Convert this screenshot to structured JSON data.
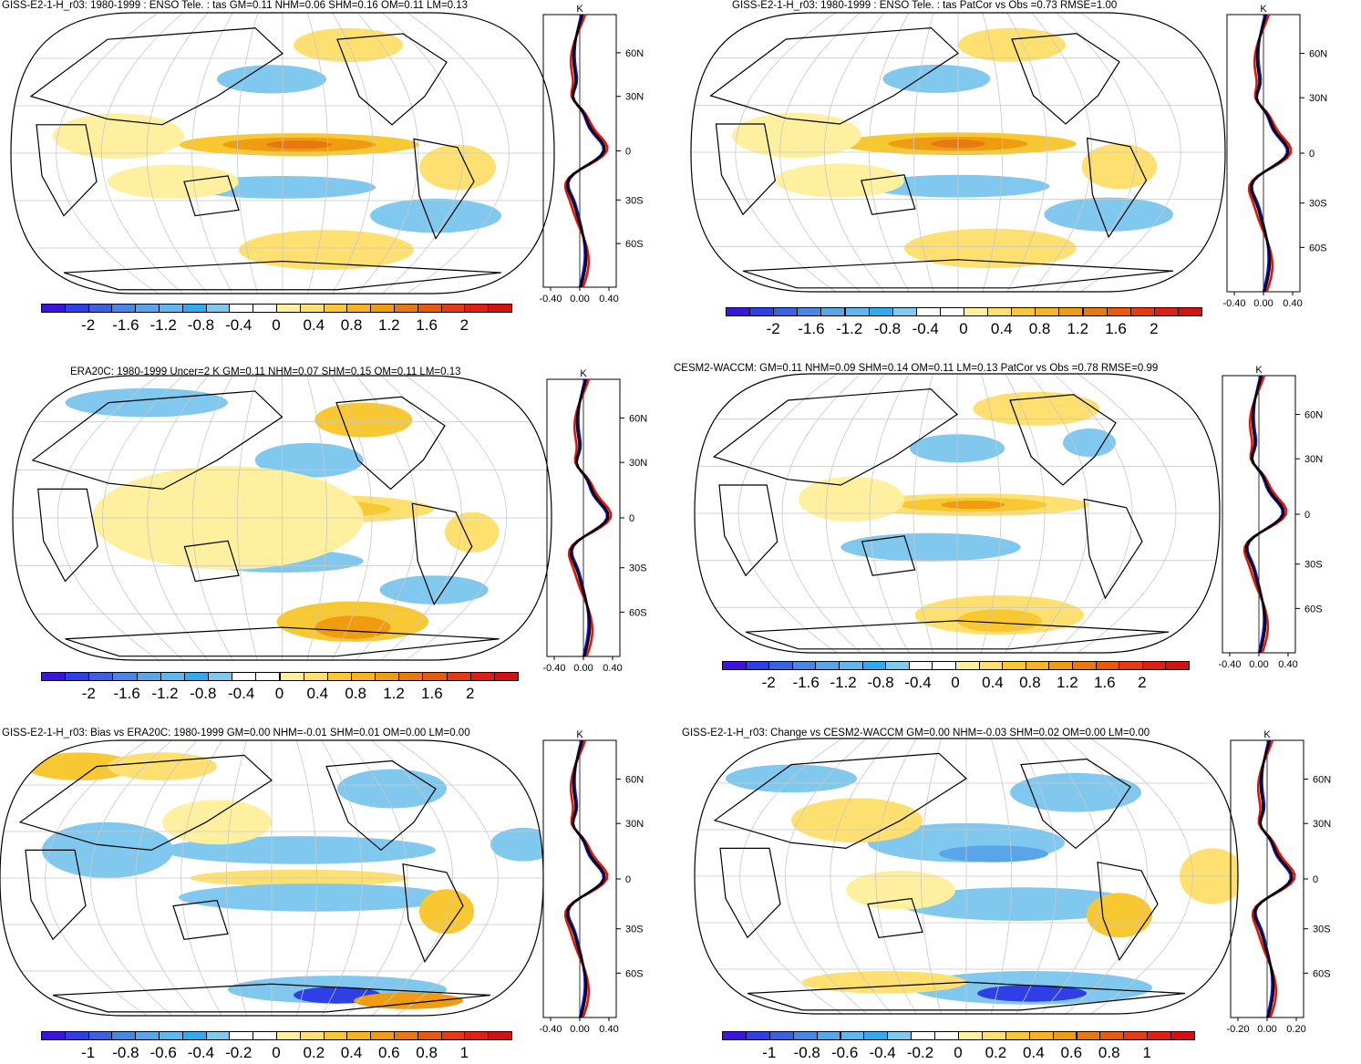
{
  "panels": [
    {
      "title": "GISS-E2-1-H_r03: 1980-1999 : ENSO Tele. : tas GM=0.11 NHM=0.06 SHM=0.16 OM=0.11 LM=0.13",
      "colorbar_labels": [
        "-2",
        "-1.6",
        "-1.2",
        "-0.8",
        "-0.4",
        "0",
        "0.4",
        "0.8",
        "1.2",
        "1.6",
        "2"
      ],
      "zonal": {
        "unit": "K",
        "lat_labels": [
          "60N",
          "30N",
          "0",
          "30S",
          "60S"
        ],
        "x_labels": [
          "-0.40",
          "0.00",
          "0.40"
        ]
      }
    },
    {
      "title": "GISS-E2-1-H_r03: 1980-1999 : ENSO Tele. : tas PatCor vs Obs =0.73 RMSE=1.00",
      "colorbar_labels": [
        "-2",
        "-1.6",
        "-1.2",
        "-0.8",
        "-0.4",
        "0",
        "0.4",
        "0.8",
        "1.2",
        "1.6",
        "2"
      ],
      "zonal": {
        "unit": "K",
        "lat_labels": [
          "60N",
          "30N",
          "0",
          "30S",
          "60S"
        ],
        "x_labels": [
          "-0.40",
          "0.00",
          "0.40"
        ]
      }
    },
    {
      "title": "ERA20C: 1980-1999 Uncer=2 K GM=0.11 NHM=0.07 SHM=0.15 OM=0.11 LM=0.13",
      "colorbar_labels": [
        "-2",
        "-1.6",
        "-1.2",
        "-0.8",
        "-0.4",
        "0",
        "0.4",
        "0.8",
        "1.2",
        "1.6",
        "2"
      ],
      "zonal": {
        "unit": "K",
        "lat_labels": [
          "60N",
          "30N",
          "0",
          "30S",
          "60S"
        ],
        "x_labels": [
          "-0.40",
          "0.00",
          "0.40"
        ]
      }
    },
    {
      "title": "CESM2-WACCM: GM=0.11 NHM=0.09 SHM=0.14 OM=0.11 LM=0.13 PatCor vs Obs =0.78 RMSE=0.99",
      "colorbar_labels": [
        "-2",
        "-1.6",
        "-1.2",
        "-0.8",
        "-0.4",
        "0",
        "0.4",
        "0.8",
        "1.2",
        "1.6",
        "2"
      ],
      "zonal": {
        "unit": "K",
        "lat_labels": [
          "60N",
          "30N",
          "0",
          "30S",
          "60S"
        ],
        "x_labels": [
          "-0.40",
          "0.00",
          "0.40"
        ]
      }
    },
    {
      "title": "GISS-E2-1-H_r03: Bias vs ERA20C: 1980-1999 GM=0.00 NHM=-0.01 SHM=0.01 OM=0.00 LM=0.00",
      "colorbar_labels": [
        "-1",
        "-0.8",
        "-0.6",
        "-0.4",
        "-0.2",
        "0",
        "0.2",
        "0.4",
        "0.6",
        "0.8",
        "1"
      ],
      "zonal": {
        "unit": "K",
        "lat_labels": [
          "60N",
          "30N",
          "0",
          "30S",
          "60S"
        ],
        "x_labels": [
          "-0.40",
          "0.00",
          "0.40"
        ]
      }
    },
    {
      "title": "GISS-E2-1-H_r03: Change vs CESM2-WACCM GM=0.00 NHM=-0.03 SHM=0.02 OM=0.00 LM=0.00",
      "colorbar_labels": [
        "-1",
        "-0.8",
        "-0.6",
        "-0.4",
        "-0.2",
        "0",
        "0.2",
        "0.4",
        "0.6",
        "0.8",
        "1"
      ],
      "zonal": {
        "unit": "K",
        "lat_labels": [
          "60N",
          "30N",
          "0",
          "30S",
          "60S"
        ],
        "x_labels": [
          "-0.20",
          "0.00",
          "0.20"
        ]
      }
    }
  ],
  "colorbar_colors": [
    "#3d13e0",
    "#2f3fe8",
    "#3a62e0",
    "#4a86e8",
    "#5aa4ea",
    "#60b6ee",
    "#32aaf0",
    "#80c8ee",
    "#ffffff",
    "#ffffff",
    "#fff0a0",
    "#fde070",
    "#f8c832",
    "#f8b41e",
    "#f09c10",
    "#e87810",
    "#e85a0a",
    "#e83a10",
    "#e01e14",
    "#d41010"
  ],
  "zonal_series_colors": {
    "model": "#e81010",
    "obs": "#1010e8",
    "mean": "#000000"
  }
}
